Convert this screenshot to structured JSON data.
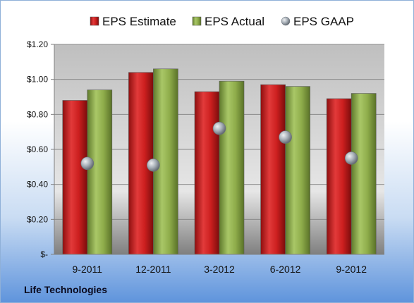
{
  "company": "Life Technologies",
  "chart_data": {
    "type": "bar",
    "categories": [
      "9-2011",
      "12-2011",
      "3-2012",
      "6-2012",
      "9-2012"
    ],
    "series": [
      {
        "name": "EPS Estimate",
        "kind": "bar",
        "color": "#cc1f1f",
        "values": [
          0.88,
          1.04,
          0.93,
          0.97,
          0.89
        ]
      },
      {
        "name": "EPS Actual",
        "kind": "bar",
        "color": "#8fad4b",
        "values": [
          0.94,
          1.06,
          0.99,
          0.96,
          0.92
        ]
      },
      {
        "name": "EPS GAAP",
        "kind": "marker",
        "color": "#9aa3ad",
        "values": [
          0.52,
          0.51,
          0.72,
          0.67,
          0.55
        ]
      }
    ],
    "ytick_labels": [
      "$-",
      "$0.20",
      "$0.40",
      "$0.60",
      "$0.80",
      "$1.00",
      "$1.20"
    ],
    "ylim": [
      0,
      1.2
    ],
    "grid": true,
    "legend_position": "top"
  }
}
